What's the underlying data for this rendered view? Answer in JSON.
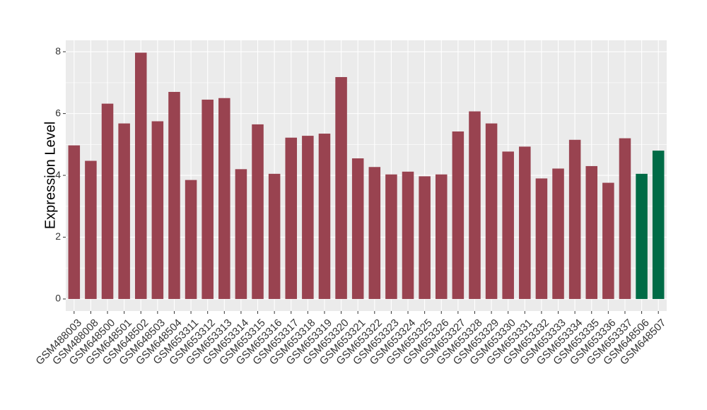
{
  "chart_data": {
    "type": "bar",
    "y_label": "Expression Level",
    "categories": [
      "GSM488003",
      "GSM488008",
      "GSM648500",
      "GSM648501",
      "GSM648502",
      "GSM648503",
      "GSM648504",
      "GSM653311",
      "GSM653312",
      "GSM653313",
      "GSM653314",
      "GSM653315",
      "GSM653316",
      "GSM653317",
      "GSM653318",
      "GSM653319",
      "GSM653320",
      "GSM653321",
      "GSM653322",
      "GSM653323",
      "GSM653324",
      "GSM653325",
      "GSM653326",
      "GSM653327",
      "GSM653328",
      "GSM653329",
      "GSM653330",
      "GSM653331",
      "GSM653332",
      "GSM653333",
      "GSM653334",
      "GSM653335",
      "GSM653336",
      "GSM653337",
      "GSM648506",
      "GSM648507"
    ],
    "values": [
      4.97,
      4.47,
      6.32,
      5.68,
      7.97,
      5.75,
      6.7,
      3.85,
      6.45,
      6.5,
      4.2,
      5.65,
      4.05,
      5.22,
      5.28,
      5.35,
      7.18,
      4.55,
      4.27,
      4.03,
      4.12,
      3.97,
      4.03,
      5.42,
      6.07,
      5.68,
      4.77,
      4.93,
      3.9,
      4.22,
      5.15,
      4.3,
      3.76,
      5.2,
      4.05,
      4.8
    ],
    "colors": [
      "#994350",
      "#994350",
      "#994350",
      "#994350",
      "#994350",
      "#994350",
      "#994350",
      "#994350",
      "#994350",
      "#994350",
      "#994350",
      "#994350",
      "#994350",
      "#994350",
      "#994350",
      "#994350",
      "#994350",
      "#994350",
      "#994350",
      "#994350",
      "#994350",
      "#994350",
      "#994350",
      "#994350",
      "#994350",
      "#994350",
      "#994350",
      "#994350",
      "#994350",
      "#994350",
      "#994350",
      "#994350",
      "#994350",
      "#994350",
      "#006b46",
      "#006b46"
    ],
    "ylim": [
      -0.39,
      8.37
    ],
    "yticks": [
      0,
      2,
      4,
      6,
      8
    ],
    "grid": true
  }
}
